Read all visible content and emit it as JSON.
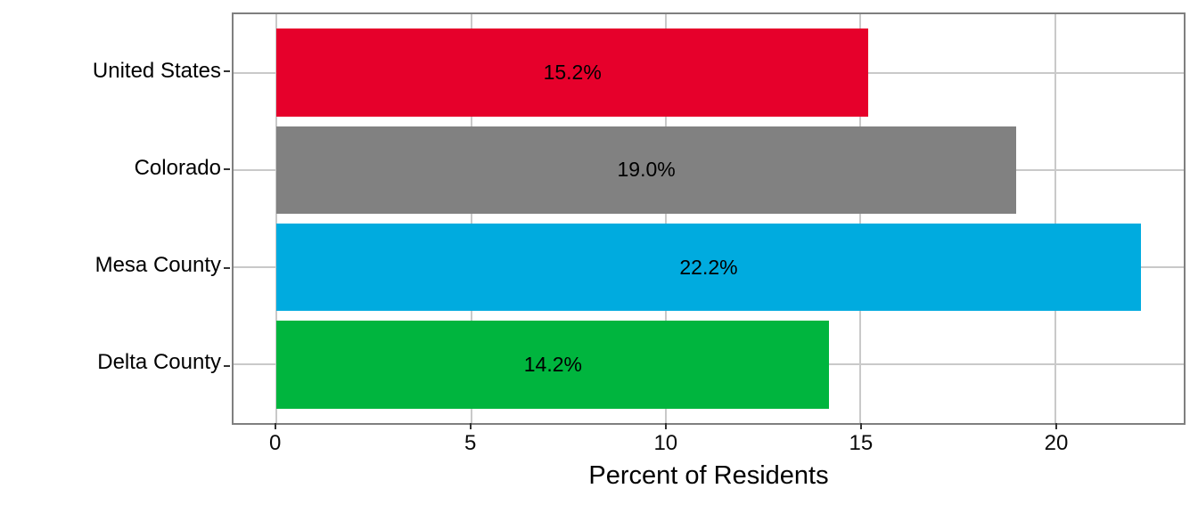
{
  "chart_data": {
    "type": "bar",
    "orientation": "horizontal",
    "title": "",
    "xlabel": "Percent of Residents",
    "ylabel": "",
    "categories": [
      "United States",
      "Colorado",
      "Mesa County",
      "Delta County"
    ],
    "values": [
      15.2,
      19.0,
      22.2,
      14.2
    ],
    "value_labels": [
      "15.2%",
      "19.0%",
      "22.2%",
      "14.2%"
    ],
    "bar_colors": [
      "#e6002b",
      "#818181",
      "#00abdf",
      "#00b53e"
    ],
    "x_ticks": [
      0,
      5,
      10,
      15,
      20
    ],
    "x_tick_labels": [
      "0",
      "5",
      "10",
      "15",
      "20"
    ],
    "xlim": [
      -1.11,
      23.31
    ],
    "grid": "major-x and category-center-y, light gray",
    "legend": false
  },
  "colors": {
    "background": "#ffffff",
    "panel_border": "#7f7f7f",
    "gridline": "#c9c9c9",
    "tick_mark": "#333333",
    "text": "#000000"
  }
}
